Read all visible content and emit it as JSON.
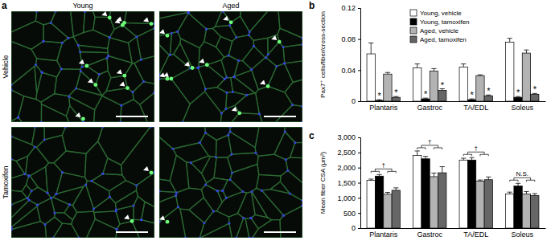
{
  "figure": {
    "panel_labels": [
      "a",
      "b",
      "c"
    ],
    "panel_a": {
      "columns": [
        "Young",
        "Aged"
      ],
      "rows": [
        "Vehicle",
        "Tamoxifen"
      ]
    }
  },
  "chart_data": [
    {
      "type": "bar",
      "ylabel": "Pax7⁺ cells/fiber/cross-section",
      "categories": [
        "Plantaris",
        "Gastroc",
        "TA/EDL",
        "Soleus"
      ],
      "series": [
        {
          "name": "Young, vehicle",
          "color": "#ffffff",
          "values": [
            0.061,
            0.043,
            0.044,
            0.076
          ],
          "errors": [
            0.014,
            0.005,
            0.004,
            0.005
          ]
        },
        {
          "name": "Young, tamoxifen",
          "color": "#000000",
          "values": [
            0.001,
            0.003,
            0.002,
            0.005
          ],
          "errors": [
            0.001,
            0.001,
            0.001,
            0.001
          ]
        },
        {
          "name": "Aged, vehicle",
          "color": "#b3b3b3",
          "values": [
            0.035,
            0.039,
            0.033,
            0.062
          ],
          "errors": [
            0.002,
            0.003,
            0.001,
            0.004
          ]
        },
        {
          "name": "Aged, tamoxifen",
          "color": "#666666",
          "values": [
            0.005,
            0.014,
            0.007,
            0.009
          ],
          "errors": [
            0.001,
            0.002,
            0.001,
            0.001
          ]
        }
      ],
      "ylim": [
        0,
        0.12
      ],
      "yticks": [
        0,
        0.04,
        0.08,
        0.12
      ],
      "legend": "top-right",
      "annotations": [
        {
          "text": "*",
          "category": "Plantaris",
          "series": "Young, tamoxifen"
        },
        {
          "text": "*",
          "category": "Plantaris",
          "series": "Aged, tamoxifen"
        },
        {
          "text": "*",
          "category": "Gastroc",
          "series": "Young, tamoxifen"
        },
        {
          "text": "*",
          "category": "Gastroc",
          "series": "Aged, tamoxifen"
        },
        {
          "text": "*",
          "category": "TA/EDL",
          "series": "Young, tamoxifen"
        },
        {
          "text": "*",
          "category": "TA/EDL",
          "series": "Aged, tamoxifen"
        },
        {
          "text": "*",
          "category": "Soleus",
          "series": "Young, tamoxifen"
        },
        {
          "text": "*",
          "category": "Soleus",
          "series": "Aged, tamoxifen"
        }
      ]
    },
    {
      "type": "bar",
      "ylabel": "Mean fiber CSA (μm²)",
      "categories": [
        "Plantaris",
        "Gastroc",
        "TA/EDL",
        "Soleus"
      ],
      "series": [
        {
          "color": "#ffffff",
          "values": [
            1580,
            2400,
            2250,
            1130
          ],
          "errors": [
            40,
            150,
            60,
            60
          ]
        },
        {
          "color": "#000000",
          "values": [
            1720,
            2290,
            2250,
            1390
          ],
          "errors": [
            50,
            80,
            80,
            90
          ]
        },
        {
          "color": "#b3b3b3",
          "values": [
            1120,
            1700,
            1550,
            1130
          ],
          "errors": [
            60,
            120,
            40,
            80
          ]
        },
        {
          "color": "#666666",
          "values": [
            1250,
            1830,
            1600,
            1080
          ],
          "errors": [
            80,
            200,
            90,
            60
          ]
        }
      ],
      "ylim": [
        0,
        3000
      ],
      "yticks": [
        0,
        500,
        {
          "value": 1000,
          "label": "1,000"
        },
        {
          "value": 1500,
          "label": "1,500"
        },
        {
          "value": 2000,
          "label": "2,000"
        },
        {
          "value": 2500,
          "label": "2,500"
        },
        {
          "value": 3000,
          "label": "3,000"
        }
      ],
      "annotations": [
        {
          "text": "†",
          "category": "Plantaris"
        },
        {
          "text": "†",
          "category": "Gastroc"
        },
        {
          "text": "†",
          "category": "TA/EDL"
        },
        {
          "text": "N.S.",
          "category": "Soleus"
        }
      ]
    }
  ]
}
